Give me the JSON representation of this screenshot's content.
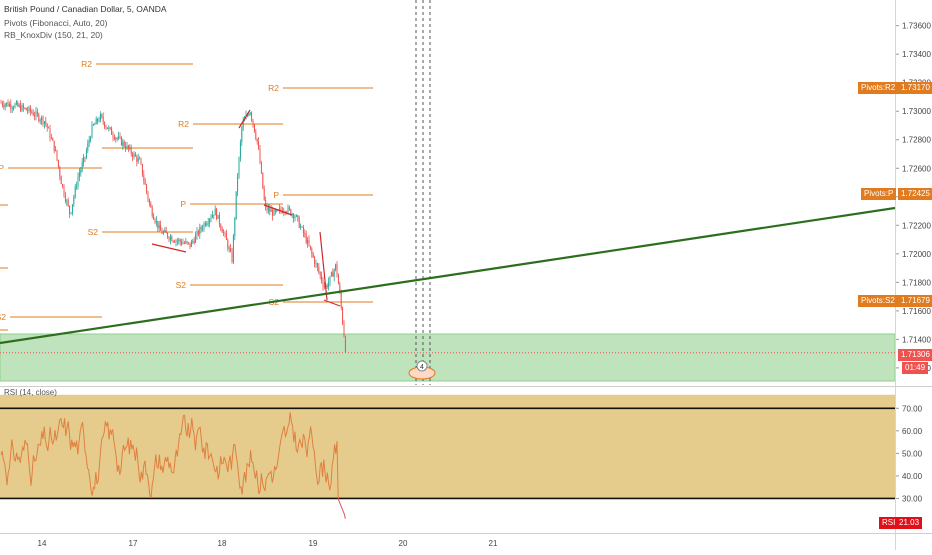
{
  "header": {
    "title": "British Pound / Canadian Dollar, 5, OANDA",
    "indicator_pivots": "Pivots (Fibonacci, Auto, 20)",
    "indicator_knox": "RB_KnoxDiv (150, 21, 20)"
  },
  "rsi_title": "RSI (14, close)",
  "price_axis": [
    "1.73600",
    "1.73400",
    "1.73200",
    "1.73000",
    "1.72800",
    "1.72600",
    "1.72400",
    "1.72200",
    "1.72000",
    "1.71800",
    "1.71600",
    "1.71400",
    "1.71306",
    "1.71200"
  ],
  "rsi_axis": [
    "70.00",
    "60.00",
    "50.00",
    "40.00",
    "30.00"
  ],
  "time_axis": [
    "14",
    "17",
    "18",
    "19",
    "20",
    "21"
  ],
  "price_tags": {
    "r2_label": "Pivots:R2",
    "r2_value": "1.73170",
    "p_label": "Pivots:P",
    "p_value": "1.72425",
    "s2_label": "Pivots:S2",
    "s2_value": "1.71679",
    "last_value": "1.71306",
    "countdown": "01:49",
    "rsi_label": "RSI",
    "rsi_value": "21.03"
  },
  "pivot_labels": [
    "R2",
    "R2",
    "R2",
    "P",
    "P",
    "P",
    "S2",
    "S2",
    "S2",
    "S2"
  ],
  "event_badge": "4",
  "colors": {
    "up": "#26a69a",
    "down": "#ef5350",
    "pivot": "#e07b20",
    "trendline": "#2d6e1e",
    "zone_fill": "#bfe3bd",
    "rsi_band": "#e5cc8d",
    "rsi_line": "#e08040",
    "rsi_low": "#e05060"
  },
  "chart_data": {
    "type": "candlestick",
    "symbol": "GBPCAD",
    "interval": "5",
    "pivot_levels": {
      "R2": 1.7317,
      "P": 1.72425,
      "S2": 1.71679
    },
    "last_price": 1.71306,
    "rsi_last": 21.03,
    "rsi_bands": [
      70,
      30
    ],
    "price_ylim": [
      1.7108,
      1.7378
    ],
    "rsi_ylim": [
      16,
      79
    ],
    "x_ticks": [
      "14",
      "17",
      "18",
      "19",
      "20",
      "21"
    ],
    "anchors": [
      [
        0,
        1.7306
      ],
      [
        15,
        1.7304
      ],
      [
        30,
        1.73
      ],
      [
        45,
        1.7293
      ],
      [
        55,
        1.7273
      ],
      [
        62,
        1.7248
      ],
      [
        70,
        1.7228
      ],
      [
        78,
        1.7254
      ],
      [
        85,
        1.7268
      ],
      [
        92,
        1.7288
      ],
      [
        100,
        1.7296
      ],
      [
        110,
        1.7286
      ],
      [
        125,
        1.7276
      ],
      [
        140,
        1.7264
      ],
      [
        150,
        1.7233
      ],
      [
        160,
        1.7216
      ],
      [
        175,
        1.721
      ],
      [
        190,
        1.7206
      ],
      [
        205,
        1.7222
      ],
      [
        215,
        1.723
      ],
      [
        225,
        1.7212
      ],
      [
        232,
        1.7196
      ],
      [
        237,
        1.725
      ],
      [
        242,
        1.729
      ],
      [
        250,
        1.7301
      ],
      [
        258,
        1.7276
      ],
      [
        265,
        1.7232
      ],
      [
        275,
        1.7228
      ],
      [
        285,
        1.7232
      ],
      [
        295,
        1.7227
      ],
      [
        305,
        1.7212
      ],
      [
        315,
        1.7194
      ],
      [
        320,
        1.7185
      ],
      [
        325,
        1.7176
      ],
      [
        330,
        1.7182
      ],
      [
        336,
        1.7192
      ],
      [
        340,
        1.717
      ],
      [
        343,
        1.715
      ],
      [
        346,
        1.713
      ]
    ]
  }
}
